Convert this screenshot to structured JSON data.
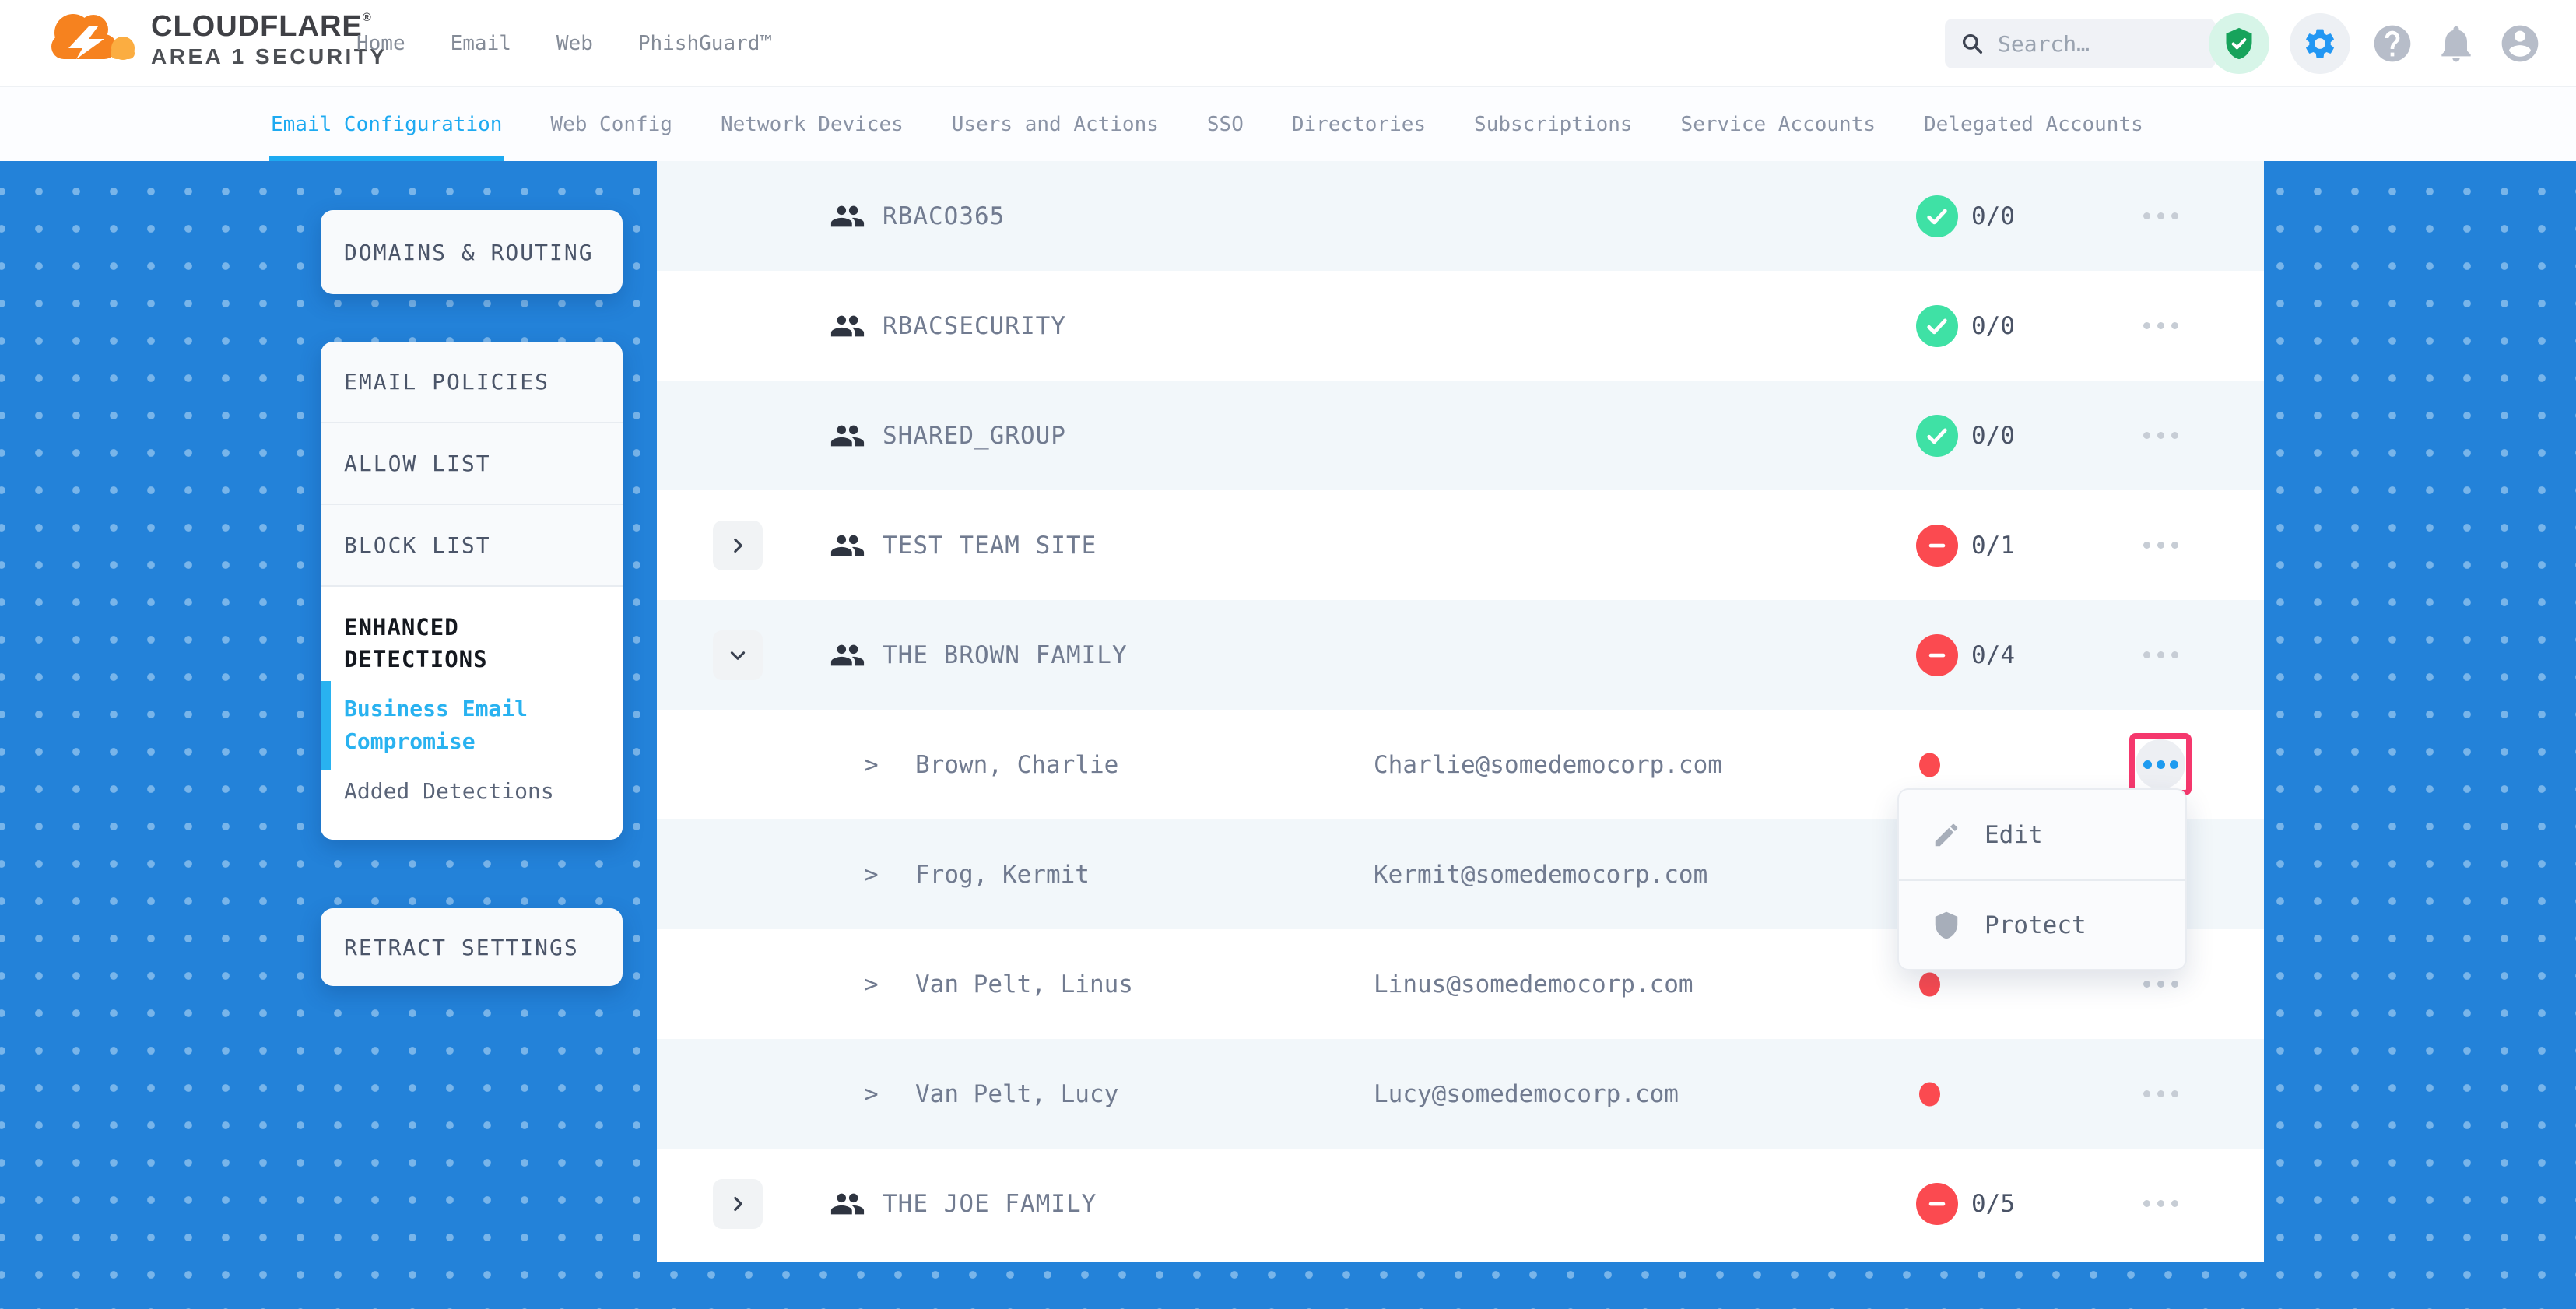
{
  "colors": {
    "page_bg": "#2382d9",
    "tab_accent": "#1daaf1",
    "sidebar_link_blue": "#29b2f0",
    "status_ok_green": "#3fe1a5",
    "status_blocked_red": "#fb4a50",
    "highlight_pink": "#f5386d",
    "active_ellipsis_blue": "#1e9bf0"
  },
  "header": {
    "brand": "CLOUDFLARE",
    "brand_reg": "®",
    "brand_sub": "AREA 1 SECURITY",
    "nav": [
      "Home",
      "Email",
      "Web",
      "PhishGuard™"
    ],
    "search_placeholder": "Search…",
    "icons": [
      {
        "name": "shield-check-icon",
        "glyph": "shieldcheck",
        "badge": "mint"
      },
      {
        "name": "settings-gear-icon",
        "glyph": "gear",
        "badge": "graycirc"
      },
      {
        "name": "help-icon",
        "glyph": "help",
        "badge": ""
      },
      {
        "name": "notifications-bell-icon",
        "glyph": "bell",
        "badge": ""
      },
      {
        "name": "user-avatar-icon",
        "glyph": "account",
        "badge": ""
      }
    ]
  },
  "tabs": [
    {
      "label": "Email Configuration",
      "active": true
    },
    {
      "label": "Web Config",
      "active": false
    },
    {
      "label": "Network Devices",
      "active": false
    },
    {
      "label": "Users and Actions",
      "active": false
    },
    {
      "label": "SSO",
      "active": false
    },
    {
      "label": "Directories",
      "active": false
    },
    {
      "label": "Subscriptions",
      "active": false
    },
    {
      "label": "Service Accounts",
      "active": false
    },
    {
      "label": "Delegated Accounts",
      "active": false
    }
  ],
  "sidebar": {
    "domains_card": "DOMAINS & ROUTING",
    "policy_items": [
      "EMAIL POLICIES",
      "ALLOW LIST",
      "BLOCK LIST"
    ],
    "enhanced": {
      "title": "ENHANCED DETECTIONS",
      "links": [
        {
          "label": "Business Email Compromise",
          "active": true
        },
        {
          "label": "Added Detections",
          "active": false
        }
      ]
    },
    "retract_card": "RETRACT SETTINGS"
  },
  "table": {
    "member_chevron": ">",
    "rows": [
      {
        "type": "group",
        "name": "RBACO365",
        "status": "ok",
        "count": "0/0",
        "expandable": false,
        "expanded": false
      },
      {
        "type": "group",
        "name": "RBACSECURITY",
        "status": "ok",
        "count": "0/0",
        "expandable": false,
        "expanded": false
      },
      {
        "type": "group",
        "name": "SHARED_GROUP",
        "status": "ok",
        "count": "0/0",
        "expandable": false,
        "expanded": false
      },
      {
        "type": "group",
        "name": "TEST TEAM SITE",
        "status": "blocked",
        "count": "0/1",
        "expandable": true,
        "expanded": false
      },
      {
        "type": "group",
        "name": "THE BROWN FAMILY",
        "status": "blocked",
        "count": "0/4",
        "expandable": true,
        "expanded": true
      },
      {
        "type": "member",
        "name": "Brown, Charlie",
        "email": "Charlie@somedemocorp.com",
        "dot": true,
        "ellipsis": "highlight"
      },
      {
        "type": "member",
        "name": "Frog, Kermit",
        "email": "Kermit@somedemocorp.com",
        "dot": false,
        "ellipsis": "none"
      },
      {
        "type": "member",
        "name": "Van Pelt, Linus",
        "email": "Linus@somedemocorp.com",
        "dot": true,
        "ellipsis": "gray"
      },
      {
        "type": "member",
        "name": "Van Pelt, Lucy",
        "email": "Lucy@somedemocorp.com",
        "dot": true,
        "ellipsis": "gray"
      },
      {
        "type": "group",
        "name": "THE JOE FAMILY",
        "status": "blocked",
        "count": "0/5",
        "expandable": true,
        "expanded": false
      }
    ]
  },
  "menu": {
    "items": [
      {
        "label": "Edit",
        "icon": "pencil-icon",
        "glyph": "pencil"
      },
      {
        "label": "Protect",
        "icon": "shield-icon",
        "glyph": "shield"
      }
    ]
  }
}
